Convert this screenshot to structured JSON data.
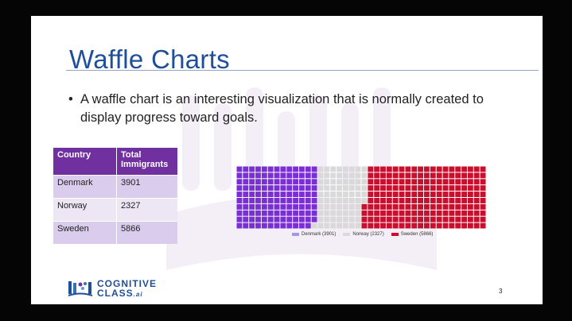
{
  "slide": {
    "title": "Waffle Charts",
    "bullet": "A waffle chart is an interesting visualization that is normally created to display progress toward goals.",
    "page_number": "3"
  },
  "table": {
    "headers": [
      "Country",
      "Total Immigrants"
    ],
    "rows": [
      [
        "Denmark",
        "3901"
      ],
      [
        "Norway",
        "2327"
      ],
      [
        "Sweden",
        "5866"
      ]
    ]
  },
  "logo": {
    "line1": "COGNITIVE",
    "line2": "CLASS",
    "suffix": ".ai"
  },
  "chart_data": {
    "type": "waffle",
    "rows": 10,
    "columns": 40,
    "categories": [
      "Denmark",
      "Norway",
      "Sweden"
    ],
    "values": [
      3901,
      2327,
      5866
    ],
    "colors": [
      "#7a2fd4",
      "#d9d9d9",
      "#c8102e"
    ],
    "legend": [
      "Denmark (3901)",
      "Norway (2327)",
      "Sweden (5866)"
    ],
    "legend_colors": [
      "#9e9ae8",
      "#d9d9d9",
      "#c8102e"
    ],
    "legend_position": "bottom-center",
    "grid_color": "#ffffff"
  }
}
